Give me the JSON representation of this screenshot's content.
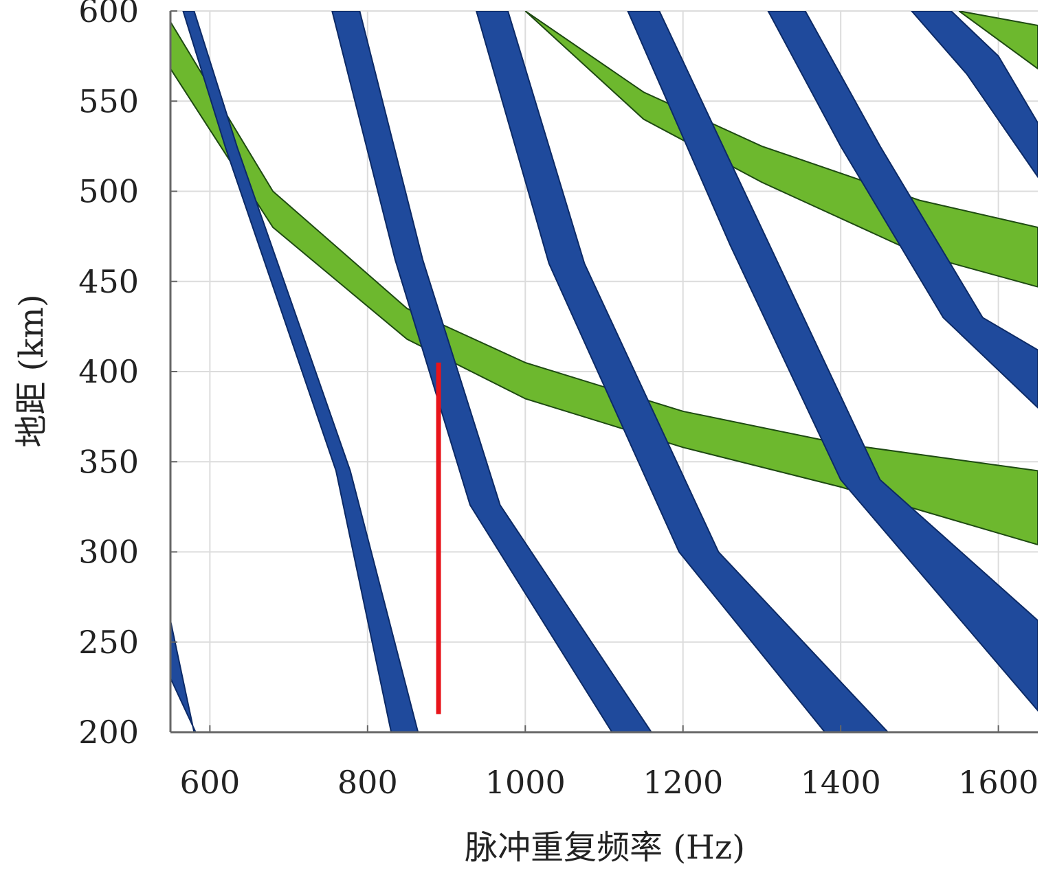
{
  "chart_data": {
    "type": "area",
    "title": "",
    "xlabel": "脉冲重复频率 (Hz)",
    "ylabel": "地距 (km)",
    "xlim": [
      550,
      1650
    ],
    "ylim": [
      200,
      600
    ],
    "xticks": [
      "600",
      "800",
      "1000",
      "1200",
      "1400",
      "1600"
    ],
    "yticks": [
      "200",
      "250",
      "300",
      "350",
      "400",
      "450",
      "500",
      "550",
      "600"
    ],
    "grid": true,
    "colors": {
      "blue_band": "#1f4a9c",
      "green_band": "#6db82e",
      "red_line": "#e8141a"
    },
    "blue_bands": [
      {
        "left": [
          [
            550,
            262
          ],
          [
            580,
            200
          ]
        ],
        "right": [
          [
            550,
            230
          ],
          [
            582,
            200
          ]
        ]
      },
      {
        "left": [
          [
            566,
            600
          ],
          [
            620,
            524
          ],
          [
            760,
            345
          ],
          [
            830,
            200
          ]
        ],
        "right": [
          [
            580,
            600
          ],
          [
            635,
            524
          ],
          [
            778,
            345
          ],
          [
            864,
            200
          ]
        ]
      },
      {
        "left": [
          [
            755,
            600
          ],
          [
            835,
            462
          ],
          [
            930,
            326
          ],
          [
            1110,
            200
          ]
        ],
        "right": [
          [
            790,
            600
          ],
          [
            870,
            462
          ],
          [
            968,
            326
          ],
          [
            1160,
            200
          ]
        ]
      },
      {
        "left": [
          [
            938,
            600
          ],
          [
            1030,
            460
          ],
          [
            1195,
            300
          ],
          [
            1380,
            200
          ]
        ],
        "right": [
          [
            978,
            600
          ],
          [
            1075,
            460
          ],
          [
            1245,
            300
          ],
          [
            1460,
            200
          ]
        ]
      },
      {
        "left": [
          [
            1130,
            600
          ],
          [
            1260,
            470
          ],
          [
            1400,
            340
          ],
          [
            1650,
            212
          ]
        ],
        "right": [
          [
            1170,
            600
          ],
          [
            1310,
            470
          ],
          [
            1450,
            340
          ],
          [
            1650,
            262
          ]
        ]
      },
      {
        "left": [
          [
            1308,
            600
          ],
          [
            1400,
            525
          ],
          [
            1530,
            430
          ],
          [
            1650,
            380
          ]
        ],
        "right": [
          [
            1355,
            600
          ],
          [
            1450,
            525
          ],
          [
            1580,
            430
          ],
          [
            1650,
            412
          ]
        ]
      },
      {
        "left": [
          [
            1490,
            600
          ],
          [
            1560,
            565
          ],
          [
            1650,
            508
          ]
        ],
        "right": [
          [
            1540,
            600
          ],
          [
            1600,
            575
          ],
          [
            1650,
            538
          ]
        ]
      }
    ],
    "green_bands": [
      {
        "upper": [
          [
            550,
            594
          ],
          [
            680,
            500
          ],
          [
            850,
            435
          ],
          [
            1000,
            405
          ],
          [
            1200,
            378
          ],
          [
            1400,
            360
          ],
          [
            1650,
            345
          ]
        ],
        "lower": [
          [
            550,
            568
          ],
          [
            680,
            480
          ],
          [
            850,
            418
          ],
          [
            1000,
            385
          ],
          [
            1200,
            358
          ],
          [
            1400,
            336
          ],
          [
            1650,
            304
          ]
        ]
      },
      {
        "upper": [
          [
            1000,
            600
          ],
          [
            1150,
            555
          ],
          [
            1300,
            525
          ],
          [
            1500,
            495
          ],
          [
            1650,
            480
          ]
        ],
        "lower": [
          [
            1000,
            600
          ],
          [
            1150,
            540
          ],
          [
            1300,
            505
          ],
          [
            1500,
            465
          ],
          [
            1650,
            447
          ]
        ]
      },
      {
        "upper": [
          [
            1550,
            600
          ],
          [
            1650,
            592
          ]
        ],
        "lower": [
          [
            1550,
            600
          ],
          [
            1650,
            568
          ]
        ]
      }
    ],
    "red_line": {
      "x": 890,
      "y": [
        210,
        405
      ]
    }
  }
}
